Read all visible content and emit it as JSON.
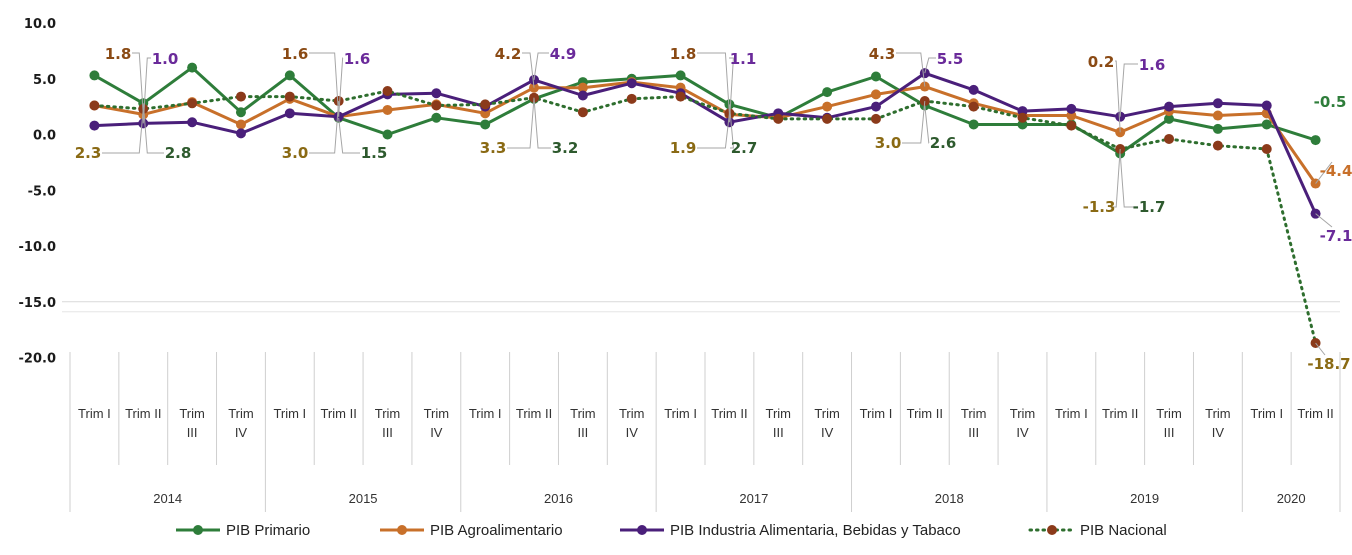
{
  "chart_data": {
    "type": "line",
    "title": "",
    "xlabel": "",
    "ylabel": "",
    "ylim": [
      -20,
      10
    ],
    "yticks": [
      "10.0",
      "5.0",
      "0.0",
      "-5.0",
      "-10.0",
      "-15.0",
      "-20.0"
    ],
    "ytick_values": [
      10,
      5,
      0,
      -5,
      -10,
      -15,
      -20
    ],
    "years": [
      {
        "label": "2014",
        "quarters": 4
      },
      {
        "label": "2015",
        "quarters": 4
      },
      {
        "label": "2016",
        "quarters": 4
      },
      {
        "label": "2017",
        "quarters": 4
      },
      {
        "label": "2018",
        "quarters": 4
      },
      {
        "label": "2019",
        "quarters": 4
      },
      {
        "label": "2020",
        "quarters": 2
      }
    ],
    "categories": [
      "Trim I",
      "Trim II",
      "Trim III",
      "Trim IV",
      "Trim I",
      "Trim II",
      "Trim III",
      "Trim IV",
      "Trim I",
      "Trim II",
      "Trim III",
      "Trim IV",
      "Trim I",
      "Trim II",
      "Trim III",
      "Trim IV",
      "Trim I",
      "Trim II",
      "Trim III",
      "Trim IV",
      "Trim I",
      "Trim II",
      "Trim III",
      "Trim IV",
      "Trim I",
      "Trim II"
    ],
    "legend_position": "bottom",
    "grid": false,
    "series": [
      {
        "name": "PIB Primario",
        "color": "#2e7d3a",
        "dash": "solid",
        "values": [
          5.3,
          2.8,
          6.0,
          2.0,
          5.3,
          1.5,
          0.0,
          1.5,
          0.9,
          3.2,
          4.7,
          5.0,
          5.3,
          2.7,
          1.5,
          3.8,
          5.2,
          2.6,
          0.9,
          0.9,
          0.9,
          -1.7,
          1.4,
          0.5,
          0.9,
          -0.5
        ]
      },
      {
        "name": "PIB Agroalimentario",
        "color": "#c8702a",
        "dash": "solid",
        "values": [
          2.6,
          1.8,
          2.9,
          0.9,
          3.2,
          1.6,
          2.2,
          2.7,
          1.9,
          4.2,
          4.2,
          4.7,
          4.2,
          1.8,
          1.5,
          2.5,
          3.6,
          4.3,
          2.8,
          1.7,
          1.7,
          0.2,
          2.1,
          1.7,
          1.9,
          -4.4
        ]
      },
      {
        "name": "PIB Industria Alimentaria, Bebidas y Tabaco",
        "color": "#4a1f7a",
        "dash": "solid",
        "values": [
          0.8,
          1.0,
          1.1,
          0.1,
          1.9,
          1.6,
          3.6,
          3.7,
          2.5,
          4.9,
          3.5,
          4.6,
          3.7,
          1.1,
          1.9,
          1.5,
          2.5,
          5.5,
          4.0,
          2.1,
          2.3,
          1.6,
          2.5,
          2.8,
          2.6,
          -7.1
        ]
      },
      {
        "name": "PIB Nacional",
        "color": "#2e6e2e",
        "marker_color": "#8b3a1a",
        "dash": "dotted",
        "values": [
          2.6,
          2.3,
          2.8,
          3.4,
          3.4,
          3.0,
          3.9,
          2.6,
          2.7,
          3.3,
          2.0,
          3.2,
          3.4,
          1.9,
          1.4,
          1.4,
          1.4,
          3.0,
          2.5,
          1.5,
          0.8,
          -1.3,
          -0.4,
          -1.0,
          -1.3,
          -18.7
        ]
      }
    ],
    "annotations": [
      {
        "text": "1.8",
        "color": "#8a4a14"
      },
      {
        "text": "1.0",
        "color": "#6a2a9a"
      },
      {
        "text": "2.3",
        "color": "#8a6a14"
      },
      {
        "text": "2.8",
        "color": "#2e5a2e"
      },
      {
        "text": "1.6",
        "color": "#8a4a14"
      },
      {
        "text": "1.6",
        "color": "#6a2a9a"
      },
      {
        "text": "3.0",
        "color": "#8a6a14"
      },
      {
        "text": "1.5",
        "color": "#2e5a2e"
      },
      {
        "text": "4.2",
        "color": "#8a4a14"
      },
      {
        "text": "4.9",
        "color": "#6a2a9a"
      },
      {
        "text": "3.3",
        "color": "#8a6a14"
      },
      {
        "text": "3.2",
        "color": "#2e5a2e"
      },
      {
        "text": "1.8",
        "color": "#8a4a14"
      },
      {
        "text": "1.1",
        "color": "#6a2a9a"
      },
      {
        "text": "1.9",
        "color": "#8a6a14"
      },
      {
        "text": "2.7",
        "color": "#2e5a2e"
      },
      {
        "text": "4.3",
        "color": "#8a4a14"
      },
      {
        "text": "5.5",
        "color": "#6a2a9a"
      },
      {
        "text": "3.0",
        "color": "#8a6a14"
      },
      {
        "text": "2.6",
        "color": "#2e5a2e"
      },
      {
        "text": "0.2",
        "color": "#8a4a14"
      },
      {
        "text": "1.6",
        "color": "#6a2a9a"
      },
      {
        "text": "-1.3",
        "color": "#8a6a14"
      },
      {
        "text": "-1.7",
        "color": "#2e5a2e"
      },
      {
        "text": "-0.5",
        "color": "#2e7d3a"
      },
      {
        "text": "-4.4",
        "color": "#c8702a"
      },
      {
        "text": "-7.1",
        "color": "#6a2a9a"
      },
      {
        "text": "-18.7",
        "color": "#8a6a14"
      }
    ]
  }
}
